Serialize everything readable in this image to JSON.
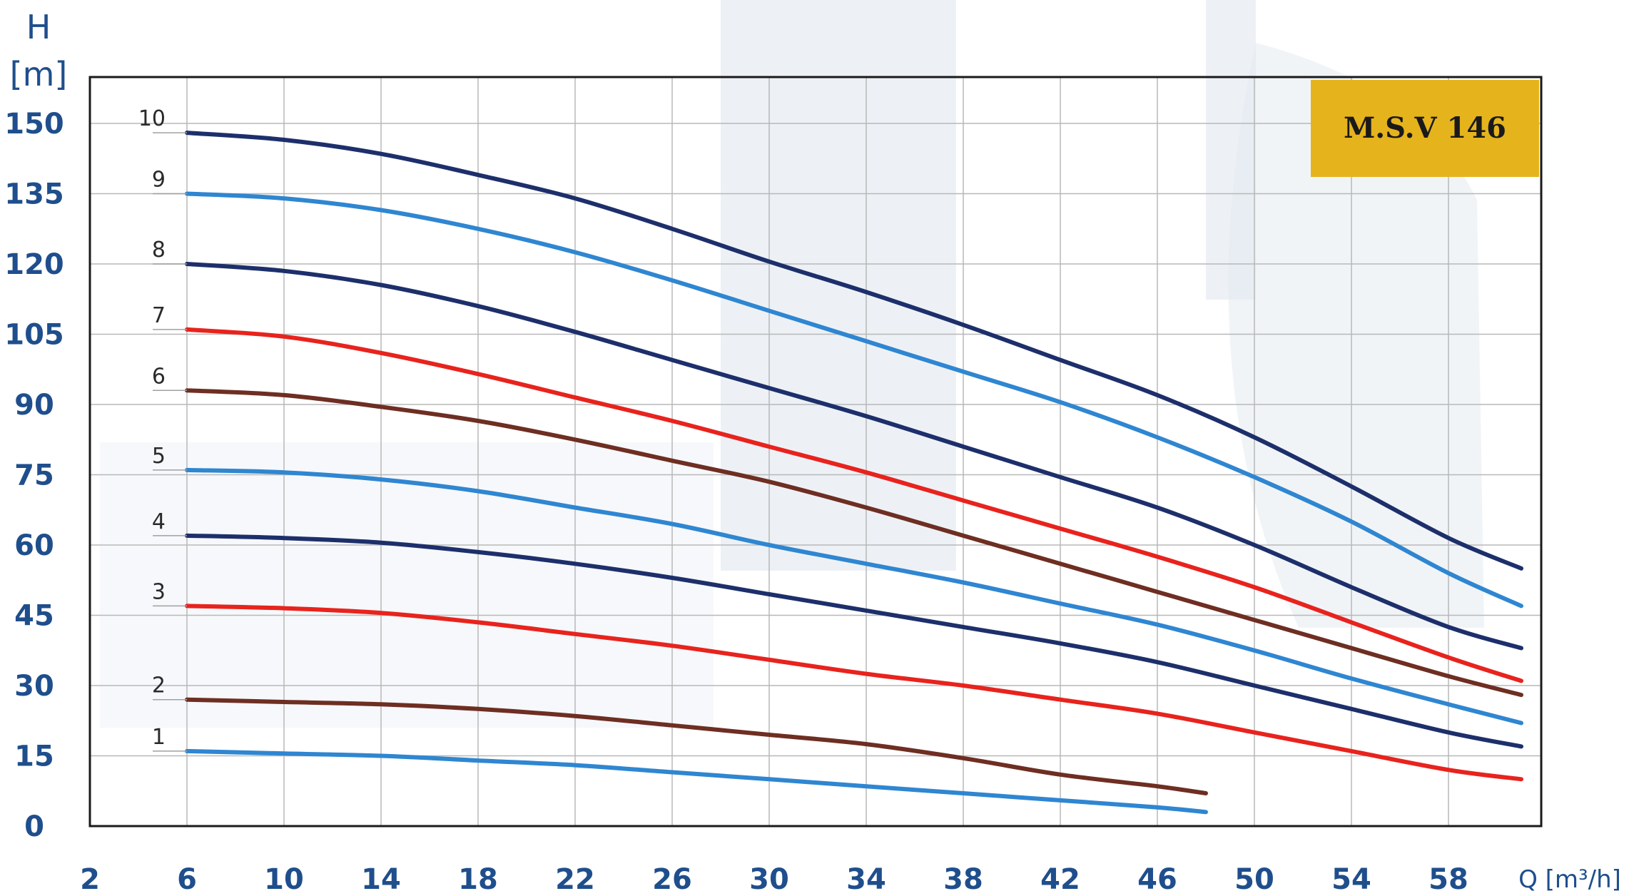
{
  "chart_data": {
    "type": "line",
    "title": "M.S.V 146",
    "ylabel_line1": "H",
    "ylabel_line2": "[m]",
    "xlabel": "Q [m³/h]",
    "xlim": [
      2,
      61
    ],
    "ylim": [
      0,
      150
    ],
    "x_ticks": [
      "2",
      "6",
      "10",
      "14",
      "18",
      "22",
      "26",
      "30",
      "34",
      "38",
      "42",
      "46",
      "50",
      "54",
      "58"
    ],
    "y_ticks": [
      "0",
      "15",
      "30",
      "45",
      "60",
      "75",
      "90",
      "105",
      "120",
      "135",
      "150"
    ],
    "grid": true,
    "colors": {
      "dark_navy": "#1d2f6b",
      "light_blue": "#2f86d1",
      "red": "#e8231d",
      "brown": "#6e2e22",
      "title_box": "#e5b31c",
      "tick_text": "#1f4e8c",
      "grid": "#b8b8b8"
    },
    "series": [
      {
        "name": "1",
        "color": "#2f86d1",
        "points": [
          [
            6,
            16
          ],
          [
            10,
            15.5
          ],
          [
            14,
            15
          ],
          [
            18,
            14
          ],
          [
            22,
            13
          ],
          [
            26,
            11.5
          ],
          [
            30,
            10
          ],
          [
            34,
            8.5
          ],
          [
            38,
            7
          ],
          [
            42,
            5.5
          ],
          [
            46,
            4
          ],
          [
            48,
            3
          ]
        ]
      },
      {
        "name": "2",
        "color": "#6e2e22",
        "points": [
          [
            6,
            27
          ],
          [
            10,
            26.5
          ],
          [
            14,
            26
          ],
          [
            18,
            25
          ],
          [
            22,
            23.5
          ],
          [
            26,
            21.5
          ],
          [
            30,
            19.5
          ],
          [
            34,
            17.5
          ],
          [
            38,
            14.5
          ],
          [
            42,
            11
          ],
          [
            46,
            8.5
          ],
          [
            48,
            7
          ]
        ]
      },
      {
        "name": "3",
        "color": "#e8231d",
        "points": [
          [
            6,
            47
          ],
          [
            10,
            46.5
          ],
          [
            14,
            45.5
          ],
          [
            18,
            43.5
          ],
          [
            22,
            41
          ],
          [
            26,
            38.5
          ],
          [
            30,
            35.5
          ],
          [
            34,
            32.5
          ],
          [
            38,
            30
          ],
          [
            42,
            27
          ],
          [
            46,
            24
          ],
          [
            50,
            20
          ],
          [
            54,
            16
          ],
          [
            58,
            12
          ],
          [
            61,
            10
          ]
        ]
      },
      {
        "name": "4",
        "color": "#1d2f6b",
        "points": [
          [
            6,
            62
          ],
          [
            10,
            61.5
          ],
          [
            14,
            60.5
          ],
          [
            18,
            58.5
          ],
          [
            22,
            56
          ],
          [
            26,
            53
          ],
          [
            30,
            49.5
          ],
          [
            34,
            46
          ],
          [
            38,
            42.5
          ],
          [
            42,
            39
          ],
          [
            46,
            35
          ],
          [
            50,
            30
          ],
          [
            54,
            25
          ],
          [
            58,
            20
          ],
          [
            61,
            17
          ]
        ]
      },
      {
        "name": "5",
        "color": "#2f86d1",
        "points": [
          [
            6,
            76
          ],
          [
            10,
            75.5
          ],
          [
            14,
            74
          ],
          [
            18,
            71.5
          ],
          [
            22,
            68
          ],
          [
            26,
            64.5
          ],
          [
            30,
            60
          ],
          [
            34,
            56
          ],
          [
            38,
            52
          ],
          [
            42,
            47.5
          ],
          [
            46,
            43
          ],
          [
            50,
            37.5
          ],
          [
            54,
            31.5
          ],
          [
            58,
            26
          ],
          [
            61,
            22
          ]
        ]
      },
      {
        "name": "6",
        "color": "#6e2e22",
        "points": [
          [
            6,
            93
          ],
          [
            10,
            92
          ],
          [
            14,
            89.5
          ],
          [
            18,
            86.5
          ],
          [
            22,
            82.5
          ],
          [
            26,
            78
          ],
          [
            30,
            73.5
          ],
          [
            34,
            68
          ],
          [
            38,
            62
          ],
          [
            42,
            56
          ],
          [
            46,
            50
          ],
          [
            50,
            44
          ],
          [
            54,
            38
          ],
          [
            58,
            32
          ],
          [
            61,
            28
          ]
        ]
      },
      {
        "name": "7",
        "color": "#e8231d",
        "points": [
          [
            6,
            106
          ],
          [
            10,
            104.5
          ],
          [
            14,
            101
          ],
          [
            18,
            96.5
          ],
          [
            22,
            91.5
          ],
          [
            26,
            86.5
          ],
          [
            30,
            81
          ],
          [
            34,
            75.5
          ],
          [
            38,
            69.5
          ],
          [
            42,
            63.5
          ],
          [
            46,
            57.5
          ],
          [
            50,
            51
          ],
          [
            54,
            43.5
          ],
          [
            58,
            36
          ],
          [
            61,
            31
          ]
        ]
      },
      {
        "name": "8",
        "color": "#1d2f6b",
        "points": [
          [
            6,
            120
          ],
          [
            10,
            118.5
          ],
          [
            14,
            115.5
          ],
          [
            18,
            111
          ],
          [
            22,
            105.5
          ],
          [
            26,
            99.5
          ],
          [
            30,
            93.5
          ],
          [
            34,
            87.5
          ],
          [
            38,
            81
          ],
          [
            42,
            74.5
          ],
          [
            46,
            68
          ],
          [
            50,
            60
          ],
          [
            54,
            51
          ],
          [
            58,
            42.5
          ],
          [
            61,
            38
          ]
        ]
      },
      {
        "name": "9",
        "color": "#2f86d1",
        "points": [
          [
            6,
            135
          ],
          [
            10,
            134
          ],
          [
            14,
            131.5
          ],
          [
            18,
            127.5
          ],
          [
            22,
            122.5
          ],
          [
            26,
            116.5
          ],
          [
            30,
            110
          ],
          [
            34,
            103.5
          ],
          [
            38,
            97
          ],
          [
            42,
            90.5
          ],
          [
            46,
            83
          ],
          [
            50,
            74.5
          ],
          [
            54,
            65
          ],
          [
            58,
            54
          ],
          [
            61,
            47
          ]
        ]
      },
      {
        "name": "10",
        "color": "#1d2f6b",
        "points": [
          [
            6,
            148
          ],
          [
            10,
            146.5
          ],
          [
            14,
            143.5
          ],
          [
            18,
            139
          ],
          [
            22,
            134
          ],
          [
            26,
            127.5
          ],
          [
            30,
            120.5
          ],
          [
            34,
            114
          ],
          [
            38,
            107
          ],
          [
            42,
            99.5
          ],
          [
            46,
            92
          ],
          [
            50,
            83
          ],
          [
            54,
            72.5
          ],
          [
            58,
            61.5
          ],
          [
            61,
            55
          ]
        ]
      }
    ]
  }
}
